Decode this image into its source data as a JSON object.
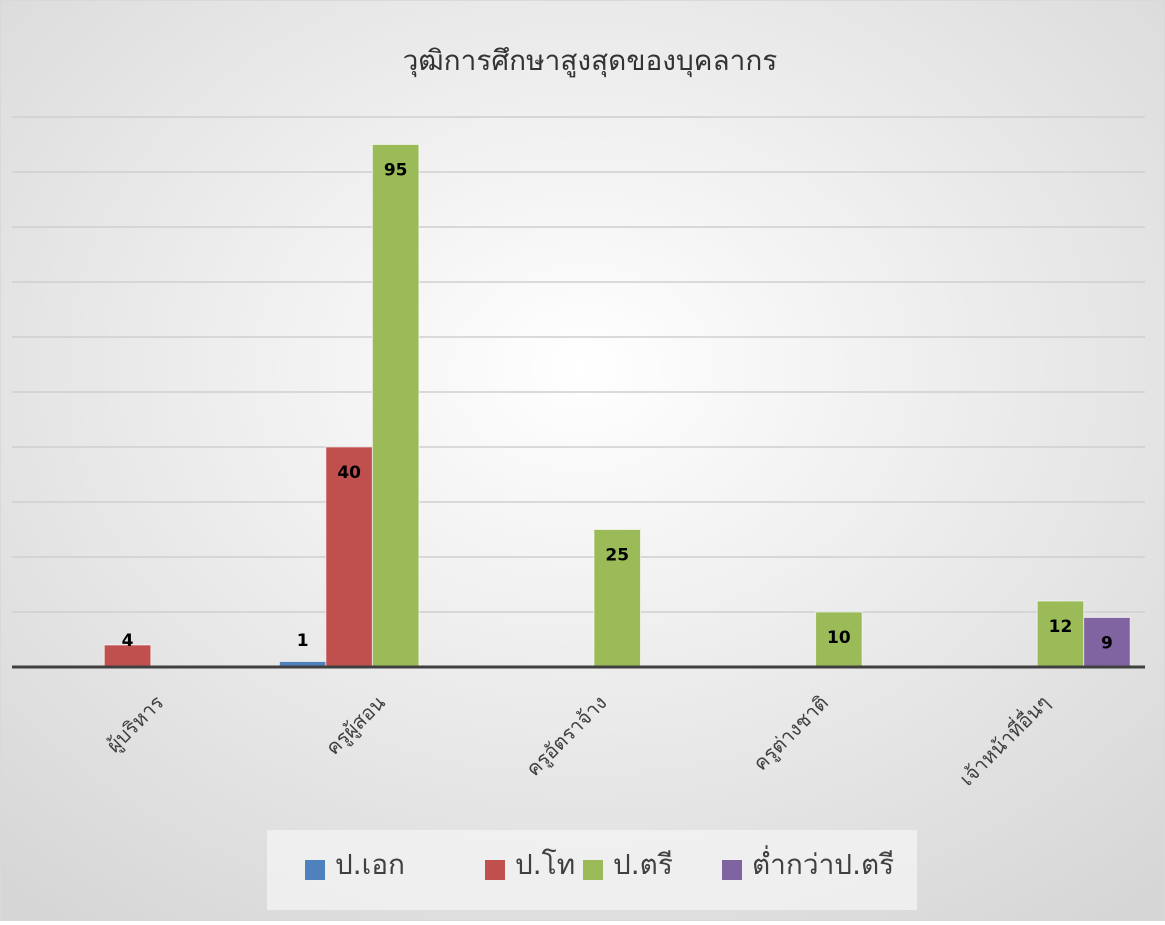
{
  "chart_data": {
    "type": "bar",
    "title": "วุฒิการศึกษาสูงสุดของบุคลากร",
    "categories": [
      "ผู้บริหาร",
      "ครูผู้สอน",
      "ครูอัตราจ้าง",
      "ครูต่างชาติ",
      "เจ้าหน้าที่อื่นๆ"
    ],
    "series": [
      {
        "name": "ป.เอก",
        "color": "#4f81bd",
        "values": [
          null,
          1,
          null,
          null,
          null
        ]
      },
      {
        "name": "ป.โท",
        "color": "#c0504d",
        "values": [
          4,
          40,
          null,
          null,
          null
        ]
      },
      {
        "name": "ป.ตรี",
        "color": "#9bbb59",
        "values": [
          null,
          95,
          25,
          10,
          12
        ]
      },
      {
        "name": "ต่ำกว่าป.ตรี",
        "color": "#8064a2",
        "values": [
          null,
          null,
          null,
          null,
          9
        ]
      }
    ],
    "ylim": [
      0,
      100
    ],
    "yticks": [
      0,
      10,
      20,
      30,
      40,
      50,
      60,
      70,
      80,
      90,
      100
    ],
    "tick_labels": false,
    "grid": true,
    "legend": "bottom"
  }
}
